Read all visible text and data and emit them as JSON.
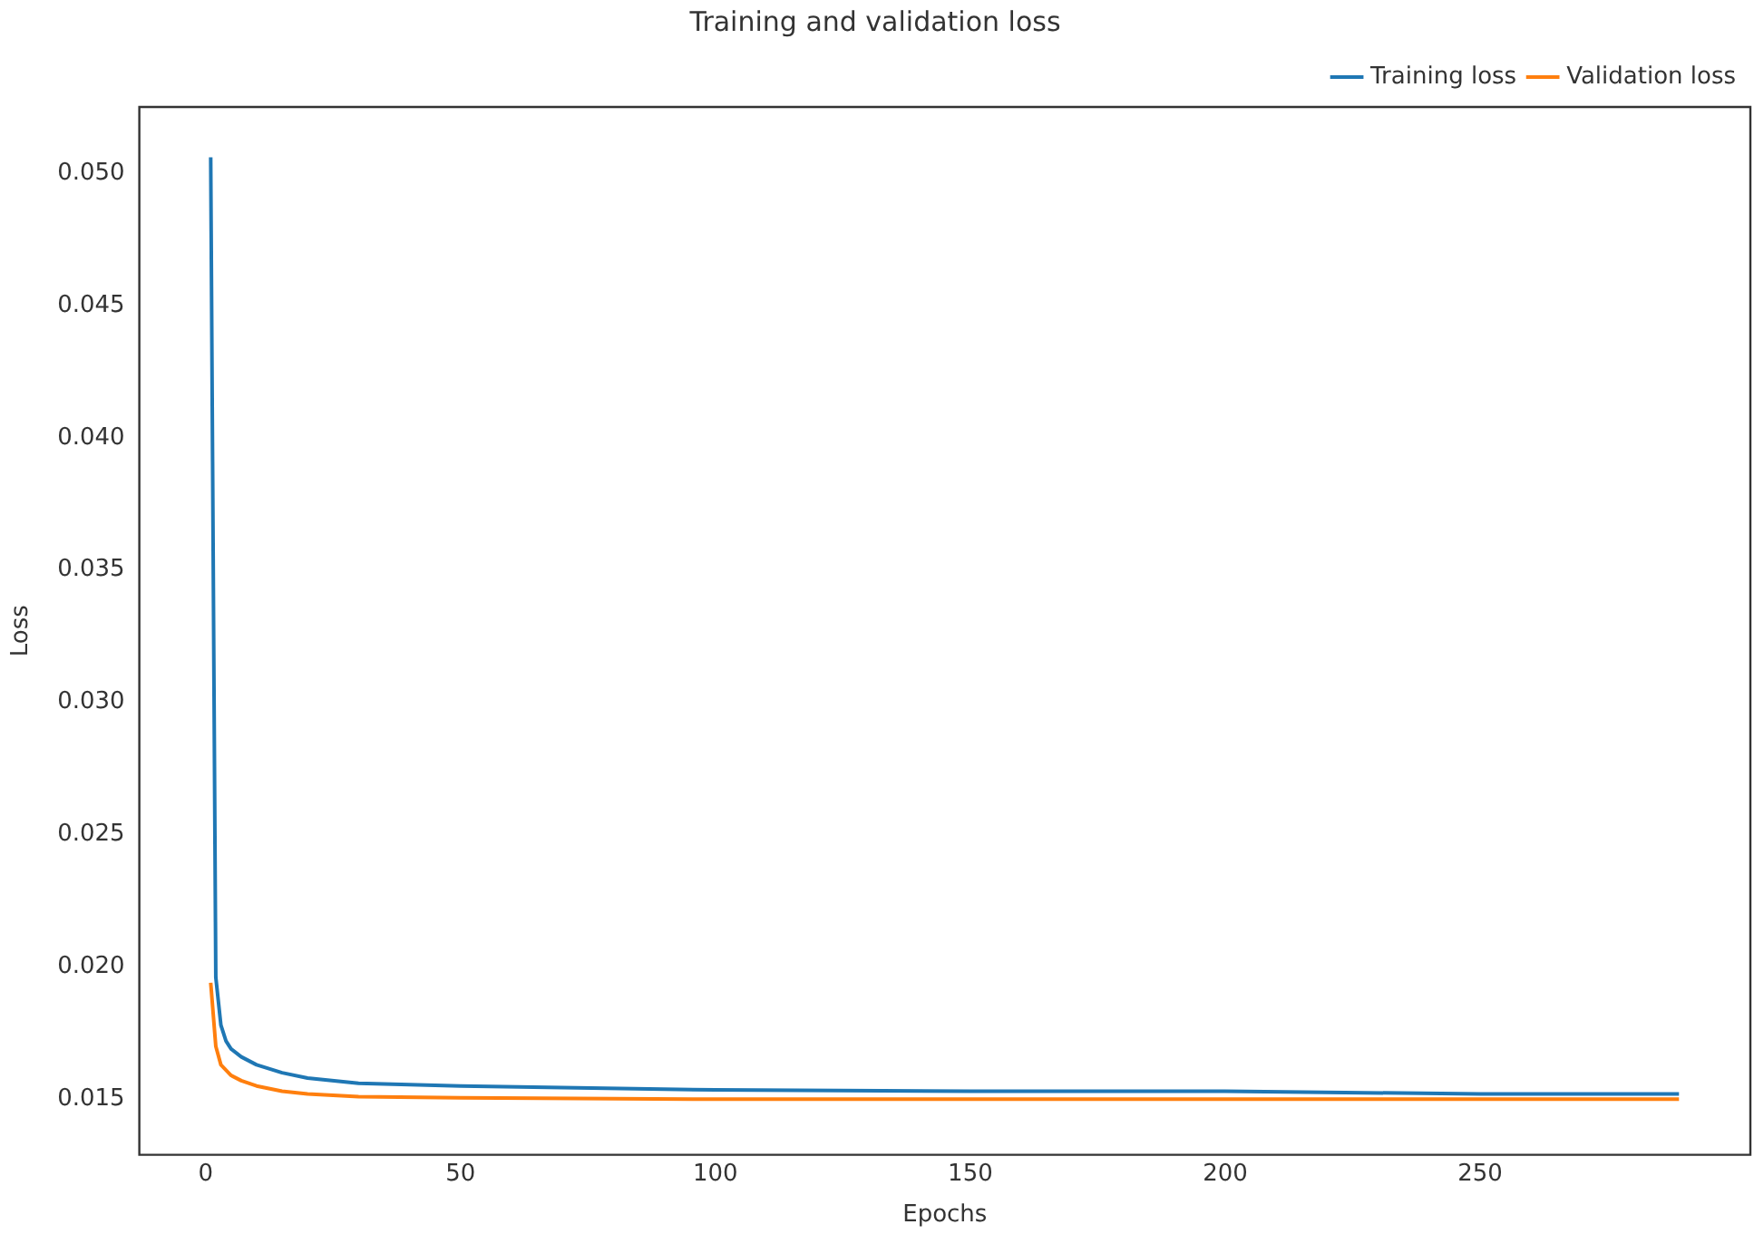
{
  "chart_data": {
    "type": "line",
    "title": "Training and validation loss",
    "xlabel": "Epochs",
    "ylabel": "Loss",
    "xlim": [
      -13,
      303
    ],
    "xticks": [
      0,
      50,
      100,
      150,
      200,
      250
    ],
    "ylim": [
      0.0129,
      0.0525
    ],
    "yticks": [
      0.015,
      {
        "value": 0.02,
        "label": "0.020"
      },
      0.025,
      {
        "value": 0.03,
        "label": "0.030"
      },
      0.035,
      {
        "value": 0.04,
        "label": "0.040"
      },
      0.045,
      {
        "value": 0.05,
        "label": "0.050"
      }
    ],
    "grid": false,
    "legend": "top right",
    "marker": "none",
    "line_style": "solid",
    "series": [
      {
        "name": "Training loss",
        "color": "#1f77b4",
        "x": [
          1,
          2,
          3,
          4,
          5,
          7,
          10,
          15,
          20,
          30,
          50,
          100,
          150,
          200,
          250,
          289
        ],
        "values": [
          0.0506,
          0.0196,
          0.0178,
          0.0172,
          0.0169,
          0.0166,
          0.0163,
          0.016,
          0.0158,
          0.0156,
          0.0155,
          0.01535,
          0.0153,
          0.0153,
          0.0152,
          0.0152
        ]
      },
      {
        "name": "Validation loss",
        "color": "#ff7f0e",
        "x": [
          1,
          2,
          3,
          5,
          7,
          10,
          15,
          20,
          30,
          50,
          100,
          150,
          200,
          250,
          289
        ],
        "values": [
          0.0194,
          0.017,
          0.0163,
          0.0159,
          0.0157,
          0.0155,
          0.0153,
          0.0152,
          0.0151,
          0.01505,
          0.015,
          0.015,
          0.015,
          0.015,
          0.015
        ]
      }
    ]
  }
}
